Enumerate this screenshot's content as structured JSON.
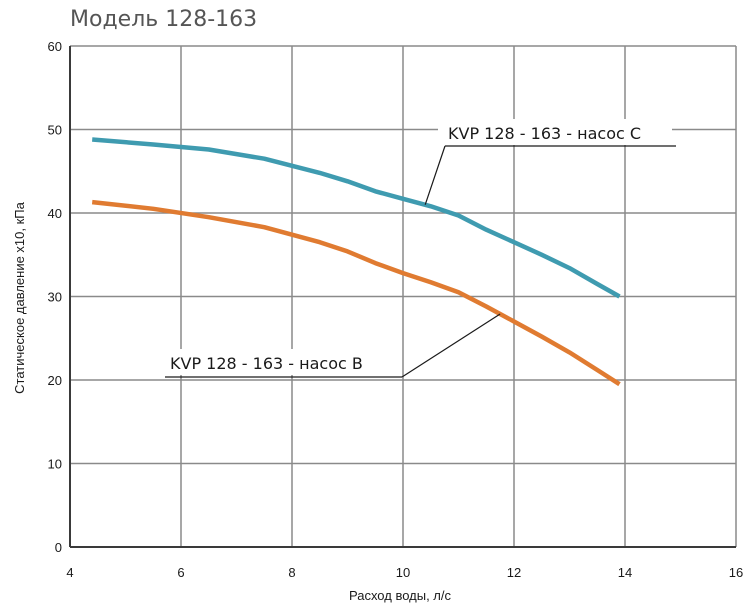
{
  "chart_data": {
    "type": "line",
    "title": "Модель 128-163",
    "xlabel": "Расход воды, л/с",
    "ylabel": "Статическое давление x10, кПа",
    "xlim": [
      4,
      16
    ],
    "ylim": [
      0,
      60
    ],
    "xticks": [
      4,
      6,
      8,
      10,
      12,
      14,
      16
    ],
    "yticks": [
      0,
      10,
      20,
      30,
      40,
      50,
      60
    ],
    "grid": true,
    "series": [
      {
        "name": "KVP 128 - 163 - насос C",
        "color": "#3f9bb0",
        "x": [
          4.4,
          5.5,
          6.5,
          7.5,
          8.5,
          9.0,
          9.5,
          10.0,
          10.5,
          11.0,
          11.5,
          12.0,
          12.5,
          13.0,
          13.5,
          13.9
        ],
        "y": [
          48.8,
          48.2,
          47.6,
          46.5,
          44.8,
          43.8,
          42.6,
          41.7,
          40.8,
          39.7,
          38.0,
          36.5,
          35.0,
          33.4,
          31.5,
          30.0
        ]
      },
      {
        "name": "KVP 128 - 163 - насос B",
        "color": "#e07b31",
        "x": [
          4.4,
          5.5,
          6.5,
          7.5,
          8.5,
          9.0,
          9.5,
          10.0,
          10.5,
          11.0,
          11.5,
          12.0,
          12.5,
          13.0,
          13.5,
          13.9
        ],
        "y": [
          41.3,
          40.5,
          39.5,
          38.3,
          36.5,
          35.4,
          34.0,
          32.8,
          31.7,
          30.5,
          28.8,
          27.0,
          25.2,
          23.3,
          21.2,
          19.5
        ]
      }
    ]
  }
}
